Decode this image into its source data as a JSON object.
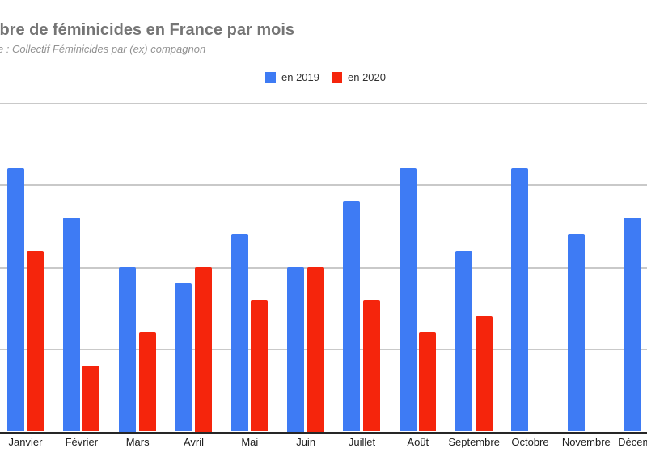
{
  "header": {
    "title": "Nombre de féminicides en France par mois",
    "subtitle": "Source : Collectif Féminicides par (ex) compagnon"
  },
  "legend": [
    {
      "label": "en 2019",
      "color": "#3e7bf4"
    },
    {
      "label": "en 2020",
      "color": "#f5250c"
    }
  ],
  "chart_data": {
    "type": "bar",
    "title": "Nombre de féminicides en France par mois",
    "subtitle": "Source : Collectif Féminicides par (ex) compagnon",
    "categories": [
      "Janvier",
      "Février",
      "Mars",
      "Avril",
      "Mai",
      "Juin",
      "Juillet",
      "Août",
      "Septembre",
      "Octobre",
      "Novembre",
      "Décembre"
    ],
    "series": [
      {
        "name": "en 2019",
        "color": "#3e7bf4",
        "values": [
          16,
          13,
          10,
          9,
          12,
          10,
          14,
          16,
          11,
          16,
          12,
          13
        ]
      },
      {
        "name": "en 2020",
        "color": "#f5250c",
        "values": [
          11,
          4,
          6,
          10,
          8,
          10,
          8,
          6,
          7,
          null,
          null,
          null
        ]
      }
    ],
    "xlabel": "",
    "ylabel": "",
    "ylim": [
      0,
      20
    ],
    "grid_step": 5,
    "grid": true,
    "legend_position": "top",
    "gridline_color": "#c9c9c9",
    "axis_color": "#262626"
  }
}
